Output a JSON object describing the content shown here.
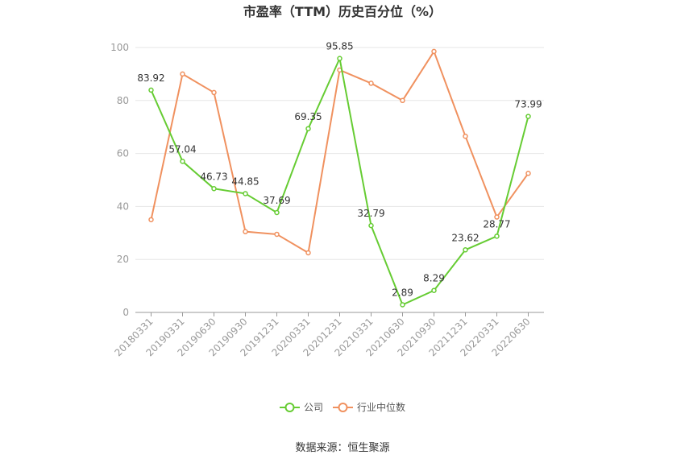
{
  "chart_data": {
    "type": "line",
    "title": "市盈率（TTM）历史百分位（%）",
    "x": [
      "20180331",
      "20190331",
      "20190630",
      "20190930",
      "20191231",
      "20200331",
      "20201231",
      "20210331",
      "20210630",
      "20210930",
      "20211231",
      "20220331",
      "20220630"
    ],
    "series": [
      {
        "name": "公司",
        "color": "#66CC33",
        "values": [
          83.92,
          57.04,
          46.73,
          44.85,
          37.69,
          69.35,
          95.85,
          32.79,
          2.89,
          8.29,
          23.62,
          28.77,
          73.99
        ],
        "labels": [
          "83.92",
          "57.04",
          "46.73",
          "44.85",
          "37.69",
          "69.35",
          "95.85",
          "32.79",
          "2.89",
          "8.29",
          "23.62",
          "28.77",
          "73.99"
        ]
      },
      {
        "name": "行业中位数",
        "color": "#F0915F",
        "values": [
          35.0,
          90.0,
          83.0,
          30.5,
          29.5,
          22.5,
          91.5,
          86.5,
          80.0,
          98.5,
          66.5,
          36.0,
          52.5
        ]
      }
    ],
    "ylim": [
      0,
      100
    ],
    "yticks": [
      "0",
      "20",
      "40",
      "60",
      "80",
      "100"
    ],
    "grid": true,
    "legend_position": "bottom"
  },
  "source_text": "数据来源：恒生聚源"
}
